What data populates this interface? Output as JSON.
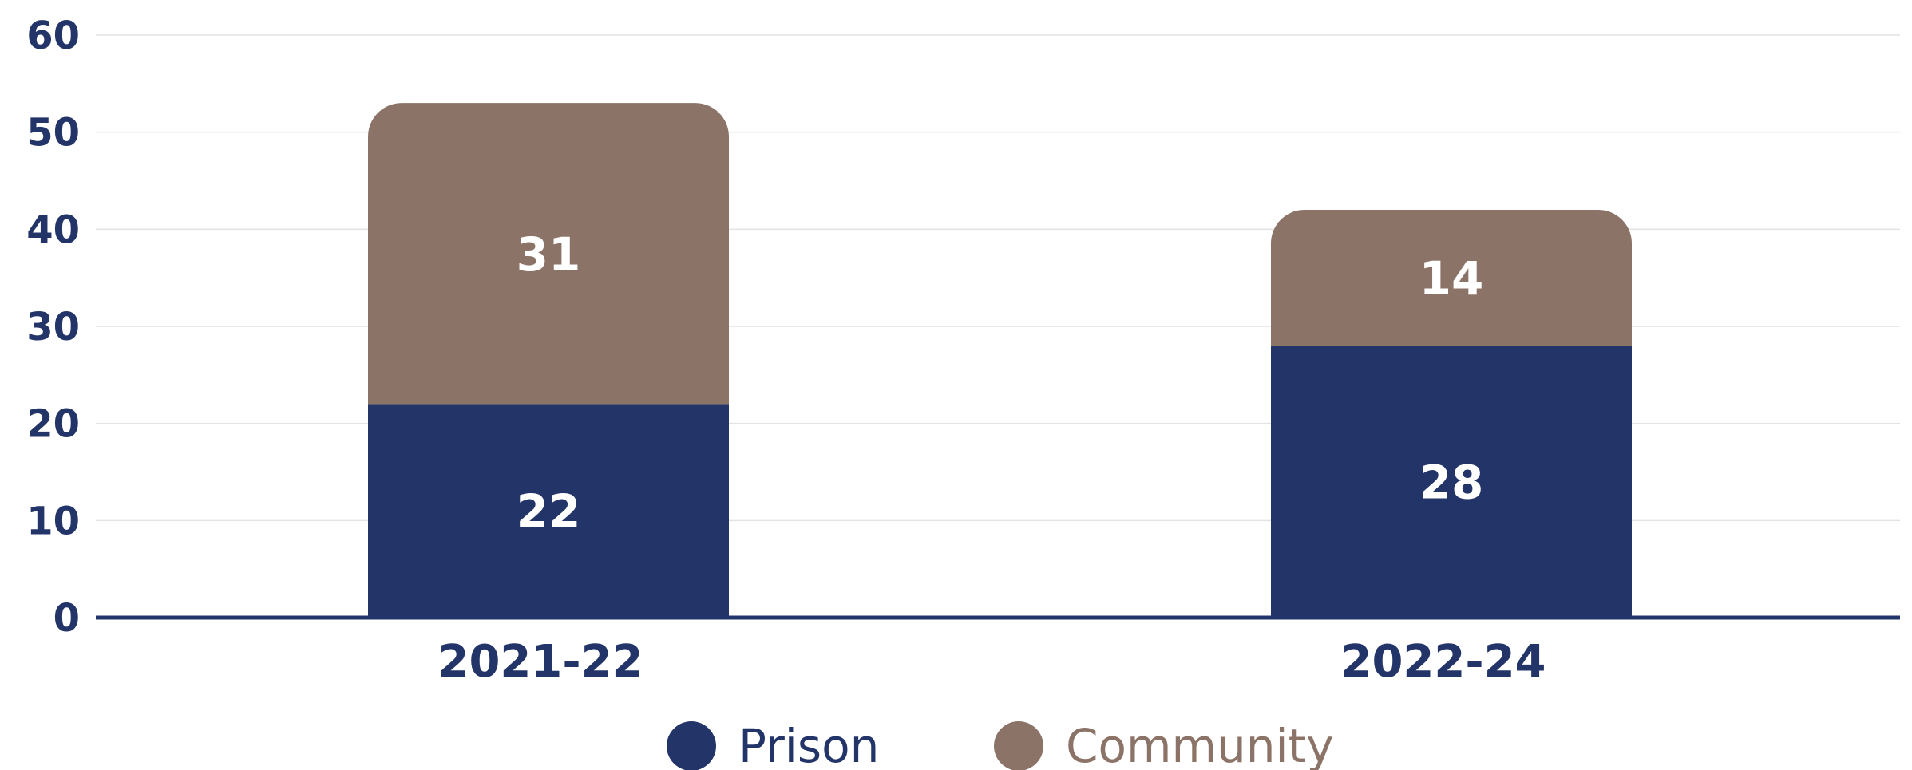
{
  "chart_data": {
    "type": "bar",
    "stacked": true,
    "categories": [
      "2021-22",
      "2022-24"
    ],
    "series": [
      {
        "name": "Prison",
        "values": [
          22,
          28
        ],
        "color": "#233468"
      },
      {
        "name": "Community",
        "values": [
          31,
          14
        ],
        "color": "#8c7367"
      }
    ],
    "ylim": [
      0,
      60
    ],
    "yticks": [
      "0",
      "10",
      "20",
      "30",
      "40",
      "50",
      "60"
    ],
    "grid": true,
    "legend": "bottom-center",
    "axis_color": "#233468",
    "grid_color": "#e3e3e3"
  }
}
